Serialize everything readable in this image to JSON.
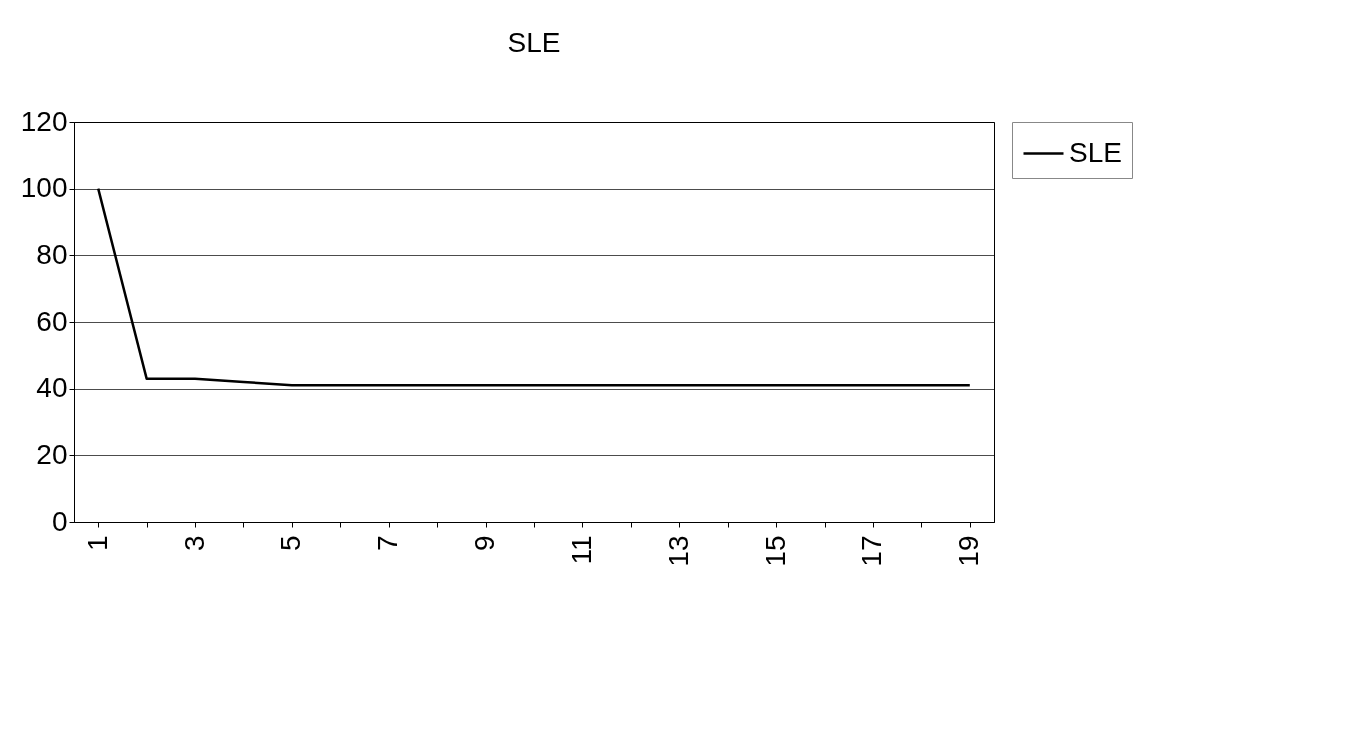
{
  "chart_data": {
    "type": "line",
    "title": "SLE",
    "categories": [
      "1",
      null,
      "3",
      null,
      "5",
      null,
      "7",
      null,
      "9",
      null,
      "11",
      null,
      "13",
      null,
      "15",
      null,
      "17",
      null,
      "19"
    ],
    "series": [
      {
        "name": "SLE",
        "color": "#000000",
        "values": [
          100,
          43,
          43,
          42,
          41,
          41,
          41,
          41,
          41,
          41,
          41,
          41,
          41,
          41,
          41,
          41,
          41,
          41,
          41
        ]
      }
    ],
    "ylim": [
      0,
      120
    ],
    "yticks": [
      0,
      20,
      40,
      60,
      80,
      100,
      120
    ],
    "grid": "y",
    "legend": "right",
    "marker": "none",
    "line_style": "solid"
  }
}
